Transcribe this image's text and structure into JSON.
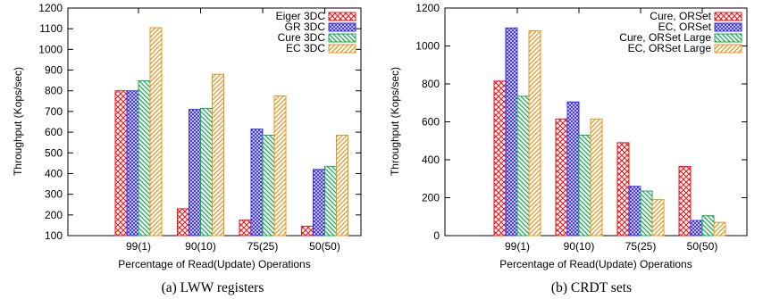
{
  "chart_data": [
    {
      "type": "bar",
      "caption": "(a) LWW registers",
      "xlabel": "Percentage of Read(Update) Operations",
      "ylabel": "Throughput (Kops/sec)",
      "ylim": [
        100,
        1200
      ],
      "yticks": [
        100,
        200,
        300,
        400,
        500,
        600,
        700,
        800,
        900,
        1000,
        1100,
        1200
      ],
      "categories": [
        "99(1)",
        "90(10)",
        "75(25)",
        "50(50)"
      ],
      "legend_position": "top-right",
      "series": [
        {
          "name": "Eiger 3DC",
          "color": "#e8161a",
          "pattern": "crosshatch",
          "values": [
            800,
            230,
            175,
            145
          ]
        },
        {
          "name": "GR 3DC",
          "color": "#3a2ff0",
          "pattern": "crosshatch-dense",
          "values": [
            800,
            710,
            615,
            420
          ]
        },
        {
          "name": "Cure 3DC",
          "color": "#11a84a",
          "pattern": "diagonal-down",
          "values": [
            848,
            715,
            585,
            435
          ]
        },
        {
          "name": "EC 3DC",
          "color": "#e09422",
          "pattern": "diagonal-up",
          "values": [
            1105,
            880,
            775,
            585
          ]
        }
      ]
    },
    {
      "type": "bar",
      "caption": "(b) CRDT sets",
      "xlabel": "Percentage of Read(Update) Operations",
      "ylabel": "Throughput (Kops/sec)",
      "ylim": [
        0,
        1200
      ],
      "yticks": [
        0,
        200,
        400,
        600,
        800,
        1000,
        1200
      ],
      "categories": [
        "99(1)",
        "90(10)",
        "75(25)",
        "50(50)"
      ],
      "legend_position": "top-right",
      "series": [
        {
          "name": "Cure, ORSet",
          "color": "#e8161a",
          "pattern": "crosshatch",
          "values": [
            815,
            615,
            490,
            365
          ]
        },
        {
          "name": "EC, ORSet",
          "color": "#3a2ff0",
          "pattern": "crosshatch-dense",
          "values": [
            1095,
            705,
            260,
            80
          ]
        },
        {
          "name": "Cure, ORSet Large",
          "color": "#11a84a",
          "pattern": "diagonal-down",
          "values": [
            735,
            530,
            235,
            105
          ]
        },
        {
          "name": "EC, ORSet Large",
          "color": "#e09422",
          "pattern": "diagonal-up",
          "values": [
            1080,
            615,
            190,
            70
          ]
        }
      ]
    }
  ]
}
